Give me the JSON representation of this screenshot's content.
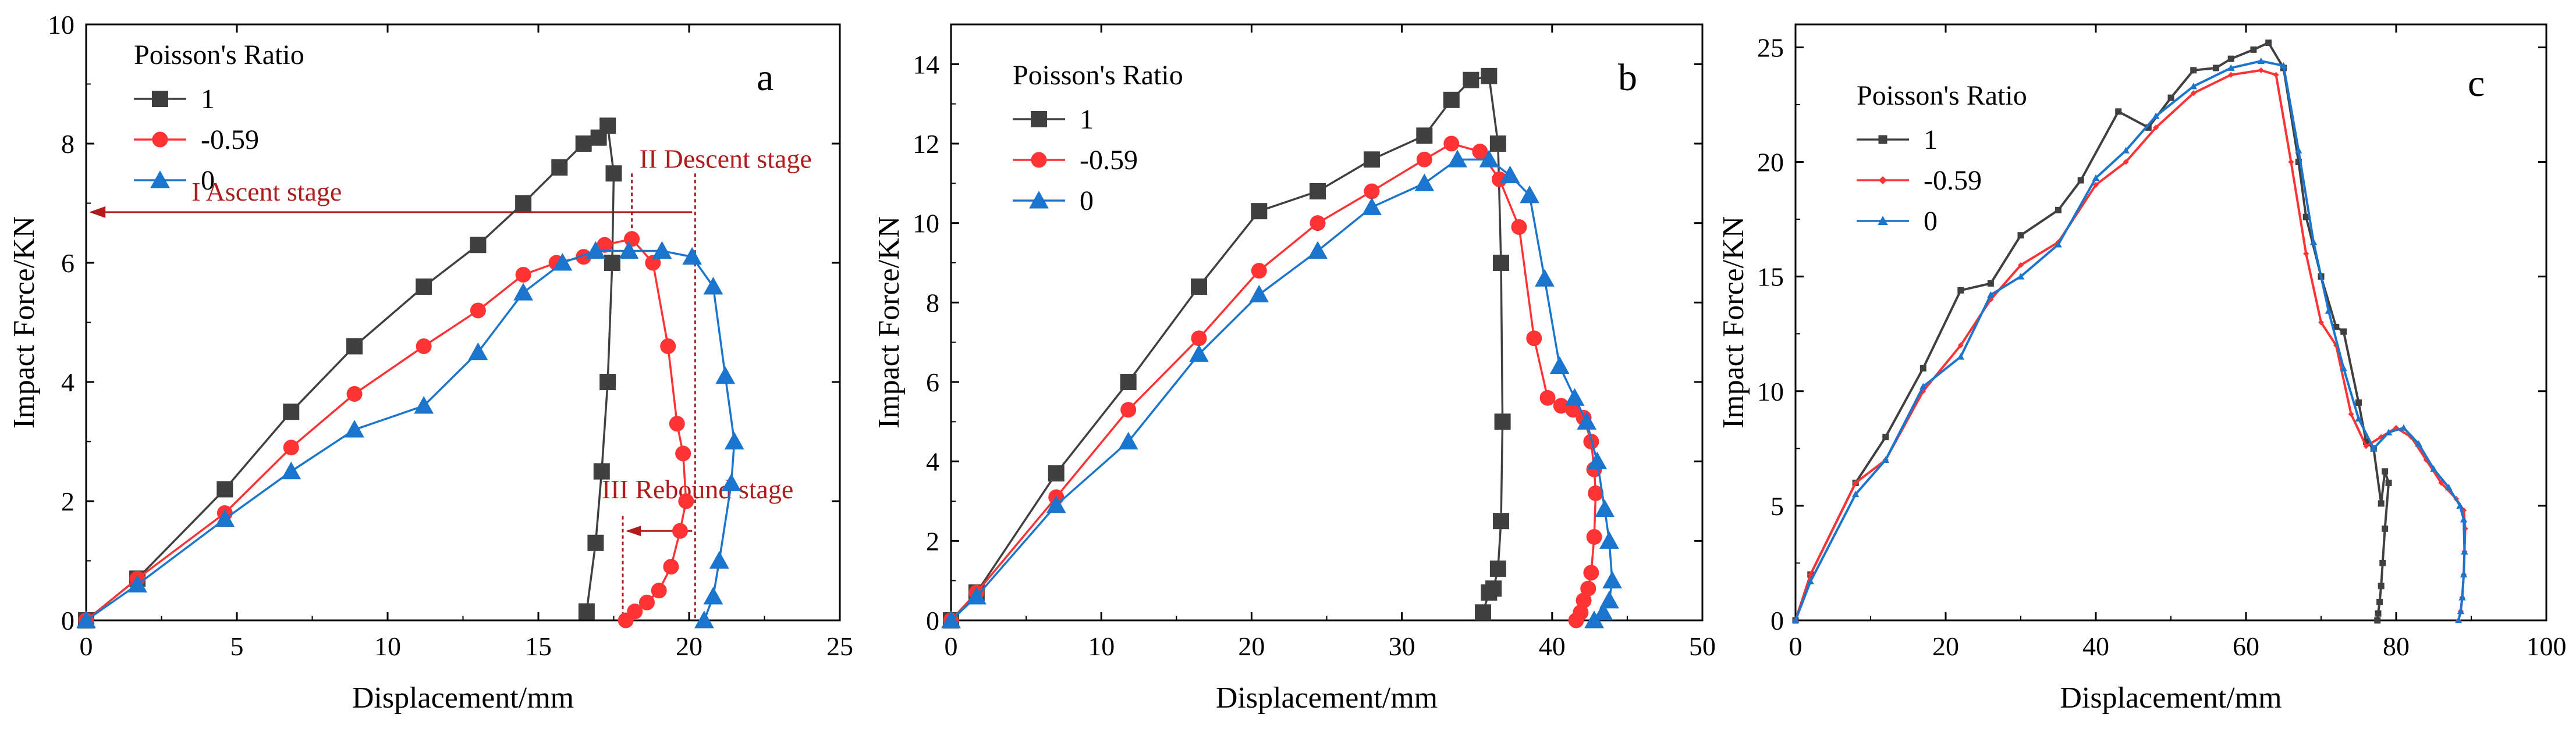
{
  "chart_data": [
    {
      "type": "line",
      "panel_label": "a",
      "xlabel": "Displacement/mm",
      "ylabel": "Impact Force/KN",
      "xlim": [
        0,
        25
      ],
      "ylim": [
        0,
        10
      ],
      "xticks": [
        "0",
        "5",
        "10",
        "15",
        "20",
        "25"
      ],
      "yticks": [
        "0",
        "2",
        "4",
        "6",
        "8",
        "10"
      ],
      "legend": {
        "title": "Poisson's Ratio",
        "placement": "top-left"
      },
      "series": [
        {
          "name": "1",
          "color": "#404040",
          "marker": "square",
          "x": [
            0,
            1.7,
            4.6,
            6.8,
            8.9,
            11.2,
            13,
            14.5,
            15.7,
            16.5,
            17,
            17.3,
            17.5,
            17.45,
            17.3,
            17.1,
            16.9,
            16.6
          ],
          "y": [
            0,
            0.7,
            2.2,
            3.5,
            4.6,
            5.6,
            6.3,
            7.0,
            7.6,
            8.0,
            8.1,
            8.3,
            7.5,
            6.0,
            4.0,
            2.5,
            1.3,
            0.15
          ]
        },
        {
          "name": "-0.59",
          "color": "#ff3333",
          "marker": "circle",
          "x": [
            0,
            1.7,
            4.6,
            6.8,
            8.9,
            11.2,
            13,
            14.5,
            15.6,
            16.5,
            17.2,
            18.1,
            18.8,
            19.3,
            19.6,
            19.8,
            19.9,
            19.7,
            19.4,
            19.0,
            18.6,
            18.2,
            17.9
          ],
          "y": [
            0,
            0.7,
            1.8,
            2.9,
            3.8,
            4.6,
            5.2,
            5.8,
            6.0,
            6.1,
            6.3,
            6.4,
            6.0,
            4.6,
            3.3,
            2.8,
            2.0,
            1.5,
            0.9,
            0.5,
            0.3,
            0.15,
            0.0
          ]
        },
        {
          "name": "0",
          "color": "#1a75cf",
          "marker": "triangle",
          "x": [
            0,
            1.7,
            4.6,
            6.8,
            8.9,
            11.2,
            13,
            14.5,
            15.8,
            16.9,
            18,
            19.1,
            20.1,
            20.8,
            21.2,
            21.5,
            21.4,
            21.0,
            20.8,
            20.5
          ],
          "y": [
            0,
            0.6,
            1.7,
            2.5,
            3.2,
            3.6,
            4.5,
            5.5,
            6.0,
            6.2,
            6.2,
            6.2,
            6.1,
            5.6,
            4.1,
            3.0,
            2.3,
            1.0,
            0.4,
            0.0
          ]
        }
      ],
      "annotations": {
        "ascent": "I Ascent stage",
        "descent": "II Descent stage",
        "rebound": "III Rebound stage"
      },
      "grid": false
    },
    {
      "type": "line",
      "panel_label": "b",
      "xlabel": "Displacement/mm",
      "ylabel": "Impact Force/KN",
      "xlim": [
        0,
        50
      ],
      "ylim": [
        0,
        15
      ],
      "xticks": [
        "0",
        "10",
        "20",
        "30",
        "40",
        "50"
      ],
      "yticks": [
        "0",
        "2",
        "4",
        "6",
        "8",
        "10",
        "12",
        "14"
      ],
      "legend": {
        "title": "Poisson's Ratio",
        "placement": "top-left"
      },
      "series": [
        {
          "name": "1",
          "color": "#404040",
          "marker": "square",
          "x": [
            0,
            1.7,
            7,
            11.8,
            16.5,
            20.5,
            24.4,
            28,
            31.5,
            33.3,
            34.6,
            35.8,
            36.4,
            36.6,
            36.7,
            36.6,
            36.4,
            36.1,
            35.8,
            35.4
          ],
          "y": [
            0,
            0.7,
            3.7,
            6.0,
            8.4,
            10.3,
            10.8,
            11.6,
            12.2,
            13.1,
            13.6,
            13.7,
            12.0,
            9.0,
            5.0,
            2.5,
            1.3,
            0.8,
            0.7,
            0.2
          ]
        },
        {
          "name": "-0.59",
          "color": "#ff3333",
          "marker": "circle",
          "x": [
            0,
            1.7,
            7,
            11.8,
            16.5,
            20.5,
            24.4,
            28,
            31.5,
            33.3,
            35.2,
            36.5,
            37.8,
            38.8,
            39.7,
            40.6,
            41.4,
            42.1,
            42.6,
            42.8,
            42.9,
            42.8,
            42.6,
            42.4,
            42.1,
            41.9,
            41.6
          ],
          "y": [
            0,
            0.7,
            3.1,
            5.3,
            7.1,
            8.8,
            10.0,
            10.8,
            11.6,
            12.0,
            11.8,
            11.1,
            9.9,
            7.1,
            5.6,
            5.4,
            5.3,
            5.1,
            4.5,
            3.8,
            3.2,
            2.1,
            1.2,
            0.8,
            0.5,
            0.2,
            0.0
          ]
        },
        {
          "name": "0",
          "color": "#1a75cf",
          "marker": "triangle",
          "x": [
            0,
            1.7,
            7,
            11.8,
            16.5,
            20.5,
            24.4,
            28,
            31.5,
            33.7,
            35.8,
            37.2,
            38.5,
            39.5,
            40.5,
            41.5,
            42.3,
            43.0,
            43.5,
            43.8,
            44.0,
            43.8,
            43.4,
            42.8
          ],
          "y": [
            0,
            0.6,
            2.9,
            4.5,
            6.7,
            8.2,
            9.3,
            10.4,
            11.0,
            11.6,
            11.6,
            11.2,
            10.7,
            8.6,
            6.4,
            5.6,
            5.0,
            4.0,
            2.8,
            2.0,
            1.0,
            0.5,
            0.2,
            0.0
          ]
        }
      ],
      "grid": false
    },
    {
      "type": "line",
      "panel_label": "c",
      "xlabel": "Displacement/mm",
      "ylabel": "Impact Force/KN",
      "xlim": [
        0,
        100
      ],
      "ylim": [
        0,
        26
      ],
      "xticks": [
        "0",
        "20",
        "40",
        "60",
        "80",
        "100"
      ],
      "yticks": [
        "0",
        "5",
        "10",
        "15",
        "20",
        "25"
      ],
      "legend": {
        "title": "Poisson's Ratio",
        "placement": "top-left"
      },
      "series": [
        {
          "name": "1",
          "color": "#404040",
          "marker": "small-square",
          "x": [
            0,
            2,
            8,
            12,
            17,
            22,
            26,
            30,
            35,
            38,
            43,
            47,
            50,
            53,
            56,
            58,
            61,
            63,
            65,
            67,
            68,
            70,
            72,
            73,
            75,
            76,
            77,
            78,
            78.5,
            79,
            78.5,
            78.2,
            78,
            77.8,
            77.6,
            77.5
          ],
          "y": [
            0,
            2,
            6,
            8,
            11,
            14.4,
            14.7,
            16.8,
            17.9,
            19.2,
            22.2,
            21.5,
            22.8,
            24,
            24.1,
            24.5,
            24.9,
            25.2,
            24.1,
            20,
            17.6,
            15,
            12.8,
            12.6,
            9.5,
            7.8,
            7.5,
            5.1,
            6.5,
            6.0,
            4.0,
            2.5,
            1.5,
            0.8,
            0.3,
            0.0
          ]
        },
        {
          "name": "-0.59",
          "color": "#ff3333",
          "marker": "small-diamond",
          "x": [
            0,
            2,
            8,
            12,
            17,
            22,
            26,
            30,
            35,
            40,
            44,
            48,
            53,
            58,
            62,
            64,
            66,
            68,
            70,
            72,
            74,
            76,
            78,
            80,
            82,
            84,
            86,
            88,
            89,
            89.2,
            89.1,
            89.0,
            88.8,
            88.6,
            88.3
          ],
          "y": [
            0,
            2,
            6,
            7,
            10,
            12,
            14,
            15.5,
            16.5,
            19.0,
            20.0,
            21.5,
            23.0,
            23.8,
            24.0,
            23.8,
            20,
            16,
            13,
            12,
            9,
            7.6,
            8,
            8.4,
            8,
            7,
            6,
            5.3,
            4.8,
            4.0,
            3.0,
            2.0,
            1.0,
            0.4,
            0.0
          ]
        },
        {
          "name": "0",
          "color": "#1a75cf",
          "marker": "small-triangle",
          "x": [
            0,
            2,
            8,
            12,
            17,
            22,
            26,
            30,
            35,
            40,
            44,
            48,
            53,
            58,
            62,
            65,
            67,
            69,
            71,
            73,
            75,
            77,
            79,
            81,
            83,
            85,
            87,
            88.5,
            89,
            89.1,
            89.0,
            88.8,
            88.6,
            88.3
          ],
          "y": [
            0,
            1.7,
            5.5,
            7,
            10.2,
            11.5,
            14.2,
            15,
            16.4,
            19.3,
            20.5,
            22,
            23.3,
            24.1,
            24.4,
            24.2,
            20.5,
            16.5,
            13.5,
            11,
            8.8,
            7.5,
            8.2,
            8.4,
            7.7,
            6.6,
            5.8,
            5.0,
            4.4,
            3.0,
            2.0,
            1.0,
            0.4,
            0.0
          ]
        }
      ],
      "grid": false
    }
  ]
}
